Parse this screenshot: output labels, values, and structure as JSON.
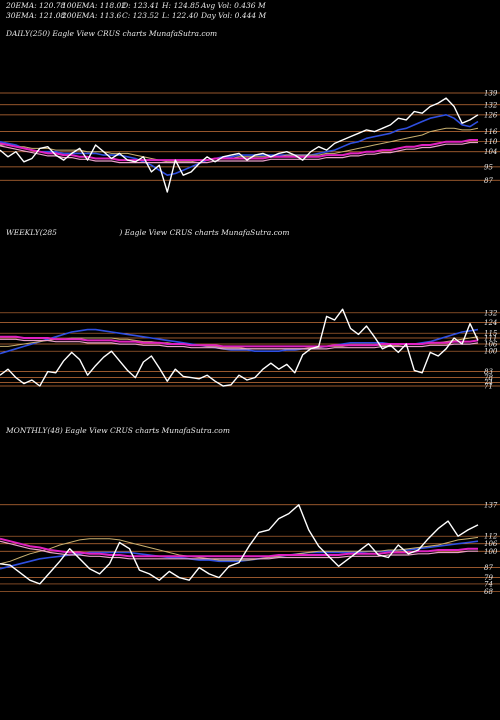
{
  "stats": {
    "ema20": "20EMA: 120.78",
    "ema100": "100EMA: 118.02",
    "open": "O: 123.41",
    "high": "H: 124.85",
    "avgvol": "Avg Vol: 0.436  M",
    "ema30": "30EMA: 121.08",
    "ema200": "200EMA: 113.6",
    "close": "C: 123.52",
    "low": "L: 122.40",
    "dayvol": "Day Vol: 0.444  M"
  },
  "panels": {
    "daily": {
      "title": "DAILY(250) Eagle   View  CRUS charts MunafaSutra.com"
    },
    "weekly": {
      "title_left": "WEEKLY(285",
      "title_right": ") Eagle   View  CRUS charts MunafaSutra.com"
    },
    "monthly": {
      "title": "MONTHLY(48) Eagle   View  CRUS charts MunafaSutra.com"
    }
  },
  "colors": {
    "background": "#000000",
    "price": "#ffffff",
    "grid": "#c8733a",
    "ema_blue": "#2f4fe0",
    "ema_magenta": "#e020c0",
    "ema_khaki": "#c8b070",
    "ema_pink": "#e8a0c8"
  },
  "chart_data": [
    {
      "type": "line",
      "name": "daily",
      "levels": [
        139,
        132,
        126,
        116,
        110,
        104,
        95,
        87
      ],
      "x": [
        0,
        1,
        2,
        3,
        4,
        5,
        6,
        7,
        8,
        9,
        10,
        11,
        12,
        13,
        14,
        15,
        16,
        17,
        18,
        19,
        20,
        21,
        22,
        23,
        24,
        25,
        26,
        27,
        28,
        29,
        30,
        31,
        32,
        33,
        34,
        35,
        36,
        37,
        38,
        39,
        40,
        41,
        42,
        43,
        44,
        45,
        46,
        47,
        48,
        49,
        50,
        51,
        52,
        53,
        54,
        55,
        56,
        57,
        58,
        59,
        60
      ],
      "series": [
        {
          "role": "price",
          "values": [
            105,
            101,
            104,
            98,
            100,
            106,
            107,
            102,
            99,
            103,
            106,
            99,
            108,
            104,
            100,
            103,
            99,
            98,
            101,
            92,
            96,
            80,
            99,
            90,
            92,
            97,
            101,
            98,
            101,
            102,
            103,
            99,
            102,
            103,
            101,
            103,
            104,
            102,
            99,
            104,
            107,
            105,
            109,
            111,
            113,
            115,
            117,
            116,
            118,
            120,
            124,
            123,
            128,
            127,
            131,
            133,
            136,
            131,
            121,
            123,
            126
          ]
        },
        {
          "role": "ema-blue",
          "values": [
            110,
            109,
            108,
            106,
            105,
            104,
            104,
            104,
            103,
            103,
            103,
            103,
            103,
            102,
            102,
            102,
            101,
            100,
            98,
            96,
            93,
            90,
            91,
            93,
            95,
            97,
            99,
            100,
            101,
            101,
            102,
            102,
            102,
            102,
            102,
            102,
            102,
            102,
            102,
            102,
            103,
            104,
            105,
            107,
            109,
            110,
            112,
            113,
            114,
            115,
            117,
            118,
            120,
            122,
            124,
            125,
            126,
            124,
            120,
            119,
            122
          ]
        },
        {
          "role": "ema-khaki",
          "values": [
            108,
            108,
            107,
            107,
            106,
            106,
            106,
            105,
            105,
            105,
            105,
            104,
            104,
            104,
            103,
            103,
            103,
            102,
            101,
            100,
            99,
            98,
            98,
            98,
            98,
            99,
            99,
            100,
            100,
            100,
            101,
            101,
            101,
            101,
            101,
            101,
            102,
            102,
            102,
            102,
            102,
            103,
            103,
            104,
            105,
            106,
            107,
            108,
            109,
            110,
            111,
            112,
            113,
            114,
            116,
            117,
            118,
            118,
            117,
            117,
            118
          ]
        },
        {
          "role": "ema-magenta",
          "values": [
            109,
            108,
            107,
            106,
            105,
            104,
            103,
            103,
            102,
            102,
            101,
            101,
            100,
            100,
            100,
            99,
            99,
            99,
            99,
            99,
            99,
            99,
            99,
            99,
            99,
            99,
            99,
            100,
            100,
            100,
            100,
            100,
            100,
            100,
            101,
            101,
            101,
            101,
            101,
            101,
            101,
            102,
            102,
            102,
            103,
            103,
            104,
            104,
            105,
            105,
            106,
            107,
            107,
            108,
            108,
            109,
            110,
            110,
            110,
            111,
            111
          ]
        }
      ]
    },
    {
      "type": "line",
      "name": "weekly",
      "levels": [
        132,
        124,
        115,
        111,
        106,
        100,
        83,
        78,
        74,
        71
      ],
      "x": [
        0,
        1,
        2,
        3,
        4,
        5,
        6,
        7,
        8,
        9,
        10,
        11,
        12,
        13,
        14,
        15,
        16,
        17,
        18,
        19,
        20,
        21,
        22,
        23,
        24,
        25,
        26,
        27,
        28,
        29,
        30,
        31,
        32,
        33,
        34,
        35,
        36,
        37,
        38,
        39,
        40,
        41,
        42,
        43,
        44,
        45,
        46,
        47,
        48,
        49,
        50,
        51,
        52,
        53,
        54,
        55,
        56,
        57,
        58,
        59,
        60
      ],
      "series": [
        {
          "role": "price",
          "values": [
            80,
            85,
            78,
            73,
            76,
            71,
            83,
            82,
            92,
            99,
            93,
            80,
            88,
            95,
            100,
            92,
            84,
            78,
            91,
            96,
            86,
            75,
            85,
            79,
            78,
            77,
            80,
            75,
            71,
            72,
            80,
            76,
            78,
            85,
            90,
            85,
            89,
            82,
            97,
            102,
            104,
            129,
            126,
            135,
            119,
            114,
            121,
            112,
            102,
            105,
            99,
            106,
            84,
            82,
            99,
            96,
            102,
            111,
            106,
            123,
            109
          ]
        },
        {
          "role": "ema-blue",
          "values": [
            98,
            100,
            102,
            104,
            106,
            108,
            110,
            112,
            114,
            116,
            117,
            118,
            118,
            117,
            116,
            115,
            114,
            113,
            112,
            111,
            110,
            109,
            108,
            107,
            106,
            105,
            104,
            103,
            102,
            101,
            101,
            101,
            100,
            100,
            100,
            100,
            101,
            101,
            102,
            102,
            103,
            104,
            105,
            106,
            107,
            107,
            107,
            107,
            107,
            106,
            106,
            106,
            106,
            107,
            108,
            110,
            112,
            114,
            116,
            117,
            118
          ]
        },
        {
          "role": "ema-khaki",
          "values": [
            104,
            104,
            105,
            106,
            107,
            108,
            109,
            110,
            110,
            111,
            111,
            111,
            111,
            111,
            111,
            110,
            110,
            109,
            108,
            108,
            107,
            107,
            106,
            106,
            105,
            105,
            104,
            104,
            103,
            103,
            103,
            102,
            102,
            102,
            102,
            102,
            102,
            102,
            102,
            103,
            103,
            104,
            104,
            104,
            105,
            105,
            105,
            105,
            105,
            105,
            105,
            106,
            106,
            106,
            107,
            107,
            108,
            109,
            110,
            111,
            112
          ]
        },
        {
          "role": "ema-magenta",
          "values": [
            112,
            112,
            112,
            111,
            111,
            111,
            111,
            110,
            110,
            110,
            110,
            109,
            109,
            109,
            109,
            108,
            108,
            108,
            107,
            107,
            107,
            106,
            106,
            106,
            105,
            105,
            105,
            105,
            104,
            104,
            104,
            104,
            104,
            104,
            104,
            104,
            104,
            104,
            104,
            104,
            104,
            104,
            105,
            105,
            105,
            105,
            105,
            105,
            106,
            106,
            106,
            106,
            106,
            106,
            107,
            107,
            107,
            108,
            108,
            108,
            109
          ]
        }
      ]
    },
    {
      "type": "line",
      "name": "monthly",
      "levels": [
        137,
        112,
        106,
        100,
        87,
        79,
        74,
        68
      ],
      "x": [
        0,
        1,
        2,
        3,
        4,
        5,
        6,
        7,
        8,
        9,
        10,
        11,
        12,
        13,
        14,
        15,
        16,
        17,
        18,
        19,
        20,
        21,
        22,
        23,
        24,
        25,
        26,
        27,
        28,
        29,
        30,
        31,
        32,
        33,
        34,
        35,
        36,
        37,
        38,
        39,
        40,
        41,
        42,
        43,
        44,
        45,
        46,
        47,
        48
      ],
      "series": [
        {
          "role": "price",
          "values": [
            90,
            89,
            83,
            77,
            74,
            83,
            92,
            102,
            94,
            86,
            82,
            90,
            107,
            102,
            85,
            82,
            77,
            84,
            79,
            77,
            87,
            82,
            79,
            88,
            91,
            104,
            115,
            117,
            126,
            130,
            137,
            117,
            104,
            96,
            88,
            94,
            100,
            106,
            97,
            95,
            105,
            98,
            101,
            110,
            118,
            124,
            112,
            117,
            121
          ]
        },
        {
          "role": "ema-blue",
          "values": [
            86,
            88,
            90,
            92,
            94,
            95,
            96,
            97,
            98,
            99,
            99,
            99,
            99,
            99,
            98,
            97,
            96,
            95,
            95,
            94,
            93,
            93,
            92,
            92,
            92,
            93,
            94,
            95,
            96,
            97,
            98,
            99,
            99,
            99,
            99,
            99,
            99,
            100,
            100,
            100,
            101,
            101,
            102,
            103,
            104,
            105,
            106,
            107,
            108
          ]
        },
        {
          "role": "ema-khaki",
          "values": [
            90,
            92,
            95,
            98,
            100,
            102,
            105,
            107,
            109,
            110,
            110,
            110,
            109,
            107,
            105,
            103,
            101,
            99,
            97,
            96,
            95,
            94,
            93,
            93,
            93,
            93,
            94,
            95,
            96,
            97,
            98,
            99,
            100,
            100,
            100,
            100,
            100,
            100,
            100,
            101,
            101,
            102,
            103,
            104,
            105,
            107,
            109,
            110,
            111
          ]
        },
        {
          "role": "ema-magenta",
          "values": [
            110,
            108,
            106,
            104,
            103,
            101,
            100,
            99,
            99,
            98,
            98,
            97,
            97,
            96,
            96,
            96,
            96,
            96,
            96,
            96,
            96,
            96,
            96,
            96,
            96,
            96,
            96,
            96,
            97,
            97,
            97,
            97,
            97,
            97,
            97,
            98,
            98,
            98,
            98,
            99,
            99,
            99,
            100,
            100,
            101,
            101,
            101,
            102,
            102
          ]
        }
      ]
    }
  ]
}
